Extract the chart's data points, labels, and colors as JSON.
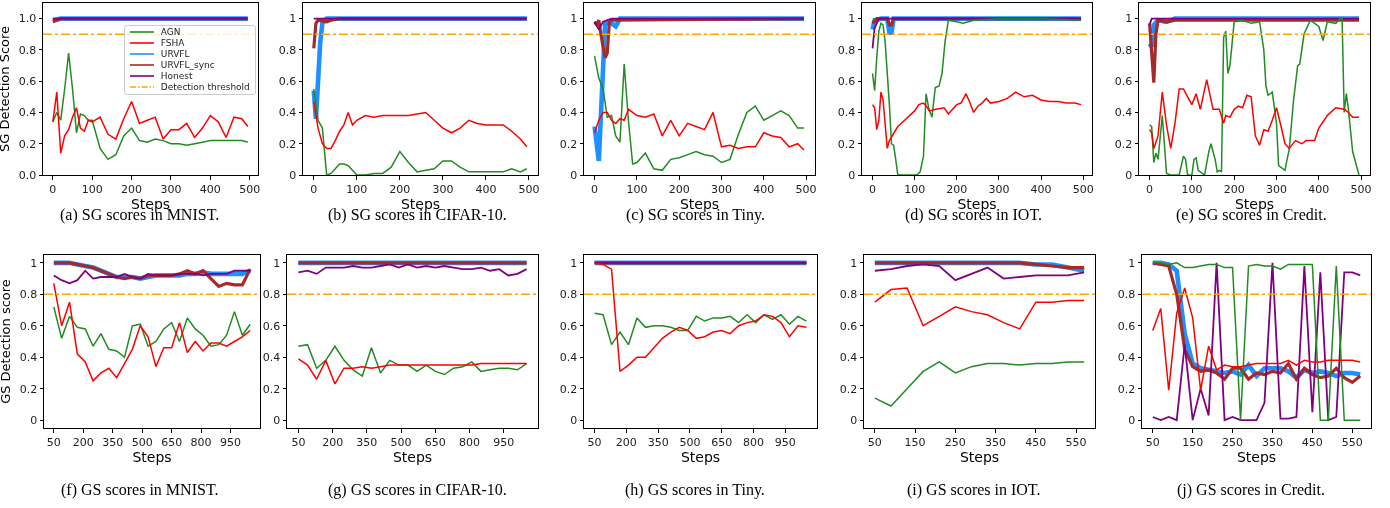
{
  "chart_data": [
    {
      "type": "line",
      "xlabel": "Steps",
      "ylabel": "SG Detection Score",
      "annotations": [
        "(a) SG scores in MNIST."
      ],
      "legend": "top right",
      "x": [
        0,
        10,
        20,
        30,
        40,
        50,
        60,
        70,
        80,
        90,
        100,
        120,
        140,
        160,
        180,
        200,
        220,
        240,
        260,
        280,
        300,
        320,
        340,
        360,
        380,
        400,
        420,
        440,
        460,
        480,
        495
      ],
      "xlim": [
        -25,
        521
      ],
      "xticks": [
        0,
        100,
        200,
        300,
        400,
        500
      ],
      "ylim": [
        0,
        1.1
      ],
      "yticks": [
        {
          "value": 0,
          "label": "0.0"
        },
        0.2,
        0.4,
        0.6,
        0.8,
        {
          "value": 1,
          "label": "1.0"
        }
      ],
      "series": [
        {
          "name": "AGN",
          "color": "#228b22",
          "values": [
            0.34,
            0.4,
            0.35,
            0.55,
            0.78,
            0.55,
            0.27,
            0.39,
            0.38,
            0.35,
            0.35,
            0.17,
            0.1,
            0.13,
            0.25,
            0.3,
            0.22,
            0.21,
            0.23,
            0.22,
            0.2,
            0.2,
            0.19,
            0.2,
            0.21,
            0.22,
            0.22,
            0.22,
            0.22,
            0.22,
            0.21
          ]
        },
        {
          "name": "FSHA",
          "color": "#ff0000",
          "values": [
            0.34,
            0.53,
            0.14,
            0.25,
            0.29,
            0.37,
            0.43,
            0.3,
            0.28,
            0.35,
            0.34,
            0.37,
            0.26,
            0.23,
            0.36,
            0.47,
            0.33,
            0.35,
            0.37,
            0.23,
            0.29,
            0.29,
            0.33,
            0.24,
            0.3,
            0.38,
            0.34,
            0.24,
            0.37,
            0.36,
            0.31
          ]
        },
        {
          "name": "URVFL",
          "color": "#1e90ff",
          "x": [
            0,
            20,
            495
          ],
          "values": [
            0.99,
            1.0,
            1.0
          ]
        },
        {
          "name": "URVFL_sync",
          "color": "#a52a2a",
          "x": [
            0,
            20,
            495
          ],
          "values": [
            0.98,
            1.0,
            1.0
          ]
        },
        {
          "name": "Honest",
          "color": "#800080",
          "x": [
            0,
            495
          ],
          "values": [
            1.0,
            1.0
          ]
        }
      ],
      "ref_lines": [
        {
          "axis": "y",
          "value": 0.9,
          "label": "Detection threshold",
          "color": "#ffa500",
          "line_style": "dashdot"
        }
      ]
    },
    {
      "type": "line",
      "xlabel": "Steps",
      "annotations": [
        "(b) SG scores in CIFAR-10."
      ],
      "x": [
        0,
        10,
        20,
        30,
        40,
        50,
        60,
        70,
        80,
        90,
        100,
        120,
        140,
        160,
        180,
        200,
        220,
        240,
        260,
        280,
        300,
        320,
        340,
        360,
        380,
        400,
        420,
        440,
        460,
        480,
        495
      ],
      "xlim": [
        -25,
        521
      ],
      "xticks": [
        0,
        100,
        200,
        300,
        400,
        500
      ],
      "ylim": [
        0,
        1.1
      ],
      "yticks": [
        0.0,
        0.2,
        0.4,
        0.6,
        0.8,
        1.0
      ],
      "series": [
        {
          "color": "#228b22",
          "values": [
            0.55,
            0.35,
            0.3,
            0.0,
            0.01,
            0.04,
            0.07,
            0.07,
            0.06,
            0.03,
            0.0,
            0.0,
            0.01,
            0.01,
            0.05,
            0.15,
            0.08,
            0.02,
            0.03,
            0.04,
            0.09,
            0.09,
            0.05,
            0.02,
            0.02,
            0.02,
            0.02,
            0.02,
            0.04,
            0.02,
            0.04
          ]
        },
        {
          "color": "#ff0000",
          "values": [
            0.47,
            0.3,
            0.2,
            0.17,
            0.17,
            0.22,
            0.28,
            0.32,
            0.4,
            0.32,
            0.35,
            0.38,
            0.37,
            0.38,
            0.38,
            0.38,
            0.38,
            0.39,
            0.4,
            0.35,
            0.3,
            0.27,
            0.3,
            0.35,
            0.33,
            0.32,
            0.32,
            0.32,
            0.28,
            0.23,
            0.18
          ]
        },
        {
          "color": "#1e90ff",
          "x": [
            0,
            5,
            10,
            15,
            20,
            25,
            30,
            495
          ],
          "values": [
            0.54,
            0.36,
            0.6,
            0.85,
            0.97,
            0.99,
            1.0,
            1.0
          ]
        },
        {
          "color": "#a52a2a",
          "x": [
            0,
            5,
            10,
            30,
            40,
            60,
            495
          ],
          "values": [
            0.81,
            0.97,
            0.99,
            0.98,
            0.99,
            1.0,
            1.0
          ]
        },
        {
          "color": "#800080",
          "x": [
            0,
            495
          ],
          "values": [
            1.0,
            1.0
          ]
        }
      ],
      "ref_lines": [
        {
          "axis": "y",
          "value": 0.9,
          "color": "#ffa500",
          "line_style": "dashdot"
        }
      ]
    },
    {
      "type": "line",
      "xlabel": "Steps",
      "annotations": [
        "(c) SG scores in Tiny."
      ],
      "x": [
        0,
        10,
        20,
        30,
        40,
        50,
        60,
        70,
        80,
        90,
        100,
        120,
        140,
        160,
        180,
        200,
        220,
        240,
        260,
        280,
        300,
        320,
        340,
        360,
        380,
        400,
        420,
        440,
        460,
        480,
        495
      ],
      "xlim": [
        -25,
        521
      ],
      "xticks": [
        0,
        100,
        200,
        300,
        400,
        500
      ],
      "ylim": [
        0,
        1.1
      ],
      "yticks": [
        0.0,
        0.2,
        0.4,
        0.6,
        0.8,
        1.0
      ],
      "series": [
        {
          "color": "#228b22",
          "values": [
            0.76,
            0.62,
            0.55,
            0.37,
            0.38,
            0.25,
            0.21,
            0.71,
            0.35,
            0.07,
            0.08,
            0.14,
            0.04,
            0.03,
            0.1,
            0.11,
            0.13,
            0.15,
            0.13,
            0.12,
            0.08,
            0.1,
            0.26,
            0.4,
            0.44,
            0.35,
            0.38,
            0.41,
            0.38,
            0.3,
            0.3
          ]
        },
        {
          "color": "#ff0000",
          "values": [
            0.27,
            0.35,
            0.4,
            0.4,
            0.35,
            0.33,
            0.36,
            0.35,
            0.42,
            0.4,
            0.38,
            0.37,
            0.39,
            0.25,
            0.35,
            0.25,
            0.33,
            0.31,
            0.29,
            0.4,
            0.18,
            0.19,
            0.17,
            0.18,
            0.18,
            0.27,
            0.25,
            0.24,
            0.18,
            0.2,
            0.16
          ]
        },
        {
          "color": "#1e90ff",
          "x": [
            0,
            10,
            25,
            40,
            50,
            60,
            495
          ],
          "values": [
            0.31,
            0.09,
            0.97,
            0.97,
            0.95,
            1.0,
            1.0
          ]
        },
        {
          "color": "#a52a2a",
          "x": [
            0,
            5,
            10,
            15,
            20,
            25,
            30,
            35,
            40,
            495
          ],
          "values": [
            0.98,
            0.96,
            0.99,
            0.9,
            0.82,
            0.75,
            0.78,
            0.98,
            0.99,
            1.0
          ]
        },
        {
          "color": "#800080",
          "x": [
            0,
            10,
            20,
            40,
            495
          ],
          "values": [
            0.98,
            0.93,
            0.98,
            1.0,
            1.0
          ]
        }
      ],
      "ref_lines": [
        {
          "axis": "y",
          "value": 0.9,
          "color": "#ffa500",
          "line_style": "dashdot"
        }
      ]
    },
    {
      "type": "line",
      "xlabel": "Steps",
      "annotations": [
        "(d) SG scores in IOT."
      ],
      "xlim": [
        -25,
        521
      ],
      "xticks": [
        0,
        100,
        200,
        300,
        400,
        500
      ],
      "ylim": [
        0,
        1.1
      ],
      "yticks": [
        0.0,
        0.2,
        0.4,
        0.6,
        0.8,
        1.0
      ],
      "series": [
        {
          "color": "#228b22",
          "x": [
            0,
            5,
            10,
            15,
            20,
            25,
            30,
            40,
            45,
            50,
            55,
            60,
            105,
            113,
            121,
            127,
            134,
            141,
            149,
            158,
            165,
            172,
            180,
            200,
            215,
            240,
            300,
            400,
            495
          ],
          "values": [
            0.65,
            0.54,
            0.75,
            0.92,
            0.97,
            0.96,
            0.85,
            0.45,
            0.2,
            0.19,
            0.1,
            0.0,
            0.0,
            0.02,
            0.12,
            0.52,
            0.42,
            0.37,
            0.56,
            0.57,
            0.65,
            0.85,
            0.99,
            0.98,
            0.97,
            0.99,
            1.0,
            1.0,
            0.99
          ]
        },
        {
          "color": "#ff0000",
          "x": [
            0,
            5,
            10,
            15,
            20,
            25,
            35,
            40,
            60,
            80,
            100,
            110,
            120,
            125,
            135,
            150,
            170,
            180,
            190,
            200,
            210,
            222,
            230,
            240,
            250,
            260,
            270,
            280,
            300,
            320,
            340,
            360,
            380,
            400,
            420,
            440,
            460,
            480,
            495
          ],
          "values": [
            0.45,
            0.43,
            0.29,
            0.35,
            0.53,
            0.48,
            0.17,
            0.22,
            0.31,
            0.36,
            0.41,
            0.45,
            0.46,
            0.45,
            0.41,
            0.42,
            0.43,
            0.39,
            0.42,
            0.45,
            0.46,
            0.52,
            0.47,
            0.4,
            0.44,
            0.46,
            0.49,
            0.46,
            0.47,
            0.49,
            0.53,
            0.5,
            0.51,
            0.48,
            0.47,
            0.47,
            0.46,
            0.46,
            0.45
          ]
        },
        {
          "color": "#1e90ff",
          "x": [
            0,
            5,
            10,
            20,
            35,
            40,
            45,
            50,
            495
          ],
          "values": [
            0.93,
            0.99,
            0.99,
            1.0,
            1.0,
            0.91,
            0.91,
            1.0,
            1.0
          ]
        },
        {
          "color": "#a52a2a",
          "x": [
            0,
            10,
            20,
            35,
            40,
            45,
            50,
            495
          ],
          "values": [
            0.97,
            1.0,
            1.0,
            1.0,
            0.96,
            0.96,
            1.0,
            1.0
          ]
        },
        {
          "color": "#800080",
          "x": [
            0,
            5,
            10,
            15,
            495
          ],
          "values": [
            0.81,
            0.94,
            0.97,
            1.0,
            1.0
          ]
        }
      ],
      "ref_lines": [
        {
          "axis": "y",
          "value": 0.9,
          "color": "#ffa500",
          "line_style": "dashdot"
        }
      ]
    },
    {
      "type": "line",
      "xlabel": "Steps",
      "annotations": [
        "(e) SG scores in Credit."
      ],
      "xlim": [
        -25,
        521
      ],
      "xticks": [
        0,
        100,
        200,
        300,
        400,
        500
      ],
      "ylim": [
        0,
        1.1
      ],
      "yticks": [
        0.0,
        0.2,
        0.4,
        0.6,
        0.8,
        1.0
      ],
      "series": [
        {
          "color": "#228b22",
          "x": [
            0,
            5,
            10,
            15,
            20,
            30,
            35,
            40,
            50,
            70,
            80,
            85,
            90,
            100,
            105,
            110,
            115,
            130,
            140,
            145,
            155,
            160,
            165,
            170,
            175,
            180,
            185,
            190,
            200,
            220,
            240,
            260,
            270,
            275,
            280,
            290,
            300,
            305,
            320,
            325,
            330,
            340,
            350,
            355,
            365,
            380,
            400,
            410,
            420,
            440,
            450,
            455,
            460,
            465,
            470,
            480,
            495
          ],
          "values": [
            0.32,
            0.31,
            0.08,
            0.14,
            0.1,
            0.38,
            0.2,
            0.01,
            0.0,
            0.0,
            0.12,
            0.1,
            0.0,
            0.0,
            0.1,
            0.11,
            0.03,
            0.0,
            0.15,
            0.2,
            0.1,
            0.02,
            0.03,
            0.02,
            0.88,
            0.92,
            0.65,
            0.7,
            0.98,
            0.99,
            0.97,
            0.98,
            0.8,
            0.57,
            0.51,
            0.53,
            0.33,
            0.06,
            0.03,
            0.1,
            0.16,
            0.47,
            0.7,
            0.71,
            0.9,
            0.99,
            0.95,
            0.86,
            0.98,
            0.97,
            1.0,
            1.0,
            0.4,
            0.52,
            0.42,
            0.15,
            0.0
          ]
        },
        {
          "color": "#ff0000",
          "x": [
            0,
            5,
            10,
            20,
            30,
            40,
            50,
            60,
            70,
            80,
            90,
            100,
            110,
            120,
            135,
            150,
            165,
            175,
            180,
            190,
            200,
            210,
            220,
            230,
            240,
            250,
            260,
            270,
            280,
            290,
            300,
            310,
            320,
            330,
            345,
            360,
            370,
            390,
            400,
            420,
            440,
            460,
            470,
            480,
            495
          ],
          "values": [
            0.29,
            0.27,
            0.17,
            0.25,
            0.53,
            0.32,
            0.17,
            0.33,
            0.55,
            0.55,
            0.5,
            0.45,
            0.52,
            0.42,
            0.61,
            0.42,
            0.42,
            0.33,
            0.38,
            0.37,
            0.42,
            0.44,
            0.43,
            0.51,
            0.5,
            0.25,
            0.19,
            0.29,
            0.28,
            0.35,
            0.43,
            0.32,
            0.2,
            0.17,
            0.22,
            0.2,
            0.22,
            0.22,
            0.3,
            0.38,
            0.43,
            0.42,
            0.4,
            0.37,
            0.37
          ]
        },
        {
          "color": "#1e90ff",
          "x": [
            0,
            5,
            10,
            20,
            40,
            60,
            495
          ],
          "values": [
            0.84,
            0.82,
            0.96,
            0.99,
            0.98,
            1.0,
            1.0
          ]
        },
        {
          "color": "#a52a2a",
          "x": [
            0,
            5,
            10,
            15,
            20,
            40,
            60,
            495
          ],
          "values": [
            0.97,
            0.78,
            0.59,
            0.9,
            0.99,
            0.98,
            0.99,
            0.99
          ]
        },
        {
          "color": "#800080",
          "x": [
            0,
            5,
            495
          ],
          "values": [
            0.96,
            1.0,
            1.0
          ]
        }
      ],
      "ref_lines": [
        {
          "axis": "y",
          "value": 0.9,
          "color": "#ffa500",
          "line_style": "dashdot"
        }
      ]
    },
    {
      "type": "line",
      "xlabel": "Steps",
      "ylabel": "GS Detection score",
      "annotations": [
        "(f) GS scores in MNIST."
      ],
      "x": [
        50,
        90,
        130,
        170,
        210,
        250,
        290,
        330,
        370,
        410,
        450,
        490,
        530,
        570,
        610,
        650,
        690,
        730,
        770,
        810,
        850,
        890,
        930,
        970,
        1010,
        1050
      ],
      "xlim": [
        0,
        1100
      ],
      "xticks": [
        50,
        200,
        350,
        500,
        650,
        800,
        950
      ],
      "ylim": [
        -0.05,
        1.05
      ],
      "yticks": [
        0.0,
        0.2,
        0.4,
        0.6,
        0.8,
        1.0
      ],
      "series": [
        {
          "color": "#228b22",
          "values": [
            0.72,
            0.52,
            0.66,
            0.59,
            0.58,
            0.47,
            0.55,
            0.45,
            0.44,
            0.4,
            0.6,
            0.61,
            0.47,
            0.5,
            0.58,
            0.62,
            0.5,
            0.65,
            0.58,
            0.54,
            0.47,
            0.48,
            0.54,
            0.69,
            0.54,
            0.61
          ]
        },
        {
          "color": "#ff0000",
          "values": [
            0.87,
            0.6,
            0.75,
            0.42,
            0.37,
            0.25,
            0.3,
            0.33,
            0.27,
            0.36,
            0.45,
            0.6,
            0.53,
            0.34,
            0.46,
            0.46,
            0.62,
            0.43,
            0.5,
            0.44,
            0.49,
            0.49,
            0.47,
            0.5,
            0.53,
            0.57
          ]
        },
        {
          "color": "#1e90ff",
          "values": [
            1.0,
            1.0,
            1.0,
            0.99,
            0.98,
            0.97,
            0.95,
            0.93,
            0.91,
            0.91,
            0.91,
            0.9,
            0.91,
            0.92,
            0.92,
            0.92,
            0.92,
            0.93,
            0.93,
            0.94,
            0.93,
            0.93,
            0.93,
            0.93,
            0.93,
            0.95
          ]
        },
        {
          "color": "#a52a2a",
          "values": [
            1.0,
            1.0,
            1.0,
            0.99,
            0.98,
            0.97,
            0.95,
            0.93,
            0.91,
            0.9,
            0.91,
            0.9,
            0.92,
            0.92,
            0.92,
            0.92,
            0.93,
            0.95,
            0.93,
            0.95,
            0.9,
            0.85,
            0.87,
            0.86,
            0.86,
            0.96
          ]
        },
        {
          "color": "#800080",
          "values": [
            0.92,
            0.89,
            0.87,
            0.89,
            0.95,
            0.9,
            0.91,
            0.91,
            0.91,
            0.93,
            0.91,
            0.9,
            0.93,
            0.92,
            0.92,
            0.92,
            0.93,
            0.93,
            0.93,
            0.92,
            0.93,
            0.93,
            0.93,
            0.95,
            0.95,
            0.95
          ]
        }
      ],
      "ref_lines": [
        {
          "axis": "y",
          "value": 0.8,
          "color": "#ffa500",
          "line_style": "dashdot"
        }
      ]
    },
    {
      "type": "line",
      "xlabel": "Steps",
      "annotations": [
        "(g) GS scores in CIFAR-10."
      ],
      "x": [
        50,
        90,
        130,
        170,
        210,
        250,
        290,
        330,
        370,
        410,
        450,
        490,
        530,
        570,
        610,
        650,
        690,
        730,
        770,
        810,
        850,
        890,
        930,
        970,
        1010,
        1050
      ],
      "xlim": [
        0,
        1100
      ],
      "xticks": [
        50,
        200,
        350,
        500,
        650,
        800,
        950
      ],
      "ylim": [
        -0.05,
        1.05
      ],
      "yticks": [
        0.0,
        0.2,
        0.4,
        0.6,
        0.8,
        1.0
      ],
      "series": [
        {
          "color": "#228b22",
          "values": [
            0.47,
            0.48,
            0.33,
            0.38,
            0.47,
            0.38,
            0.32,
            0.28,
            0.46,
            0.3,
            0.38,
            0.35,
            0.35,
            0.31,
            0.35,
            0.31,
            0.29,
            0.33,
            0.34,
            0.37,
            0.31,
            0.32,
            0.33,
            0.33,
            0.32,
            0.36
          ]
        },
        {
          "color": "#ff0000",
          "values": [
            0.39,
            0.35,
            0.26,
            0.38,
            0.23,
            0.33,
            0.33,
            0.34,
            0.33,
            0.34,
            0.35,
            0.35,
            0.35,
            0.35,
            0.35,
            0.35,
            0.35,
            0.35,
            0.35,
            0.35,
            0.36,
            0.36,
            0.36,
            0.36,
            0.36,
            0.36
          ]
        },
        {
          "color": "#1e90ff",
          "x": [
            50,
            1050
          ],
          "values": [
            1.0,
            1.0
          ]
        },
        {
          "color": "#a52a2a",
          "x": [
            50,
            1050
          ],
          "values": [
            1.0,
            1.0
          ]
        },
        {
          "color": "#800080",
          "values": [
            0.94,
            0.95,
            0.93,
            0.97,
            0.97,
            0.97,
            0.98,
            0.97,
            0.97,
            0.98,
            0.99,
            0.97,
            0.99,
            0.97,
            0.98,
            0.97,
            0.98,
            0.97,
            0.96,
            0.96,
            0.97,
            0.95,
            0.96,
            0.92,
            0.93,
            0.96
          ]
        }
      ],
      "ref_lines": [
        {
          "axis": "y",
          "value": 0.8,
          "color": "#ffa500",
          "line_style": "dashdot"
        }
      ]
    },
    {
      "type": "line",
      "xlabel": "Steps",
      "annotations": [
        "(h) GS scores in Tiny."
      ],
      "x": [
        50,
        90,
        130,
        170,
        210,
        250,
        290,
        330,
        370,
        410,
        450,
        490,
        530,
        570,
        610,
        650,
        690,
        730,
        770,
        810,
        850,
        890,
        930,
        970,
        1010,
        1050
      ],
      "xlim": [
        0,
        1100
      ],
      "xticks": [
        50,
        200,
        350,
        500,
        650,
        800,
        950
      ],
      "ylim": [
        -0.05,
        1.05
      ],
      "yticks": [
        0.0,
        0.2,
        0.4,
        0.6,
        0.8,
        1.0
      ],
      "series": [
        {
          "color": "#228b22",
          "values": [
            0.68,
            0.67,
            0.48,
            0.56,
            0.48,
            0.65,
            0.59,
            0.6,
            0.6,
            0.59,
            0.57,
            0.57,
            0.66,
            0.63,
            0.65,
            0.65,
            0.66,
            0.62,
            0.67,
            0.62,
            0.67,
            0.64,
            0.67,
            0.61,
            0.66,
            0.63
          ]
        },
        {
          "color": "#ff0000",
          "values": [
            1.0,
            0.99,
            0.96,
            0.31,
            0.35,
            0.4,
            0.4,
            0.46,
            0.52,
            0.56,
            0.59,
            0.57,
            0.52,
            0.53,
            0.56,
            0.57,
            0.55,
            0.6,
            0.62,
            0.63,
            0.67,
            0.66,
            0.62,
            0.53,
            0.6,
            0.59
          ]
        },
        {
          "color": "#1e90ff",
          "x": [
            50,
            1050
          ],
          "values": [
            1.0,
            1.0
          ]
        },
        {
          "color": "#a52a2a",
          "x": [
            50,
            1050
          ],
          "values": [
            1.0,
            1.0
          ]
        },
        {
          "color": "#800080",
          "x": [
            50,
            1050
          ],
          "values": [
            1.0,
            1.0
          ]
        }
      ],
      "ref_lines": [
        {
          "axis": "y",
          "value": 0.8,
          "color": "#ffa500",
          "line_style": "dashdot"
        }
      ]
    },
    {
      "type": "line",
      "xlabel": "Steps",
      "annotations": [
        "(i) GS scores in IOT."
      ],
      "x": [
        50,
        90,
        130,
        170,
        210,
        250,
        290,
        330,
        370,
        410,
        450,
        490,
        530,
        570
      ],
      "xlim": [
        23,
        597
      ],
      "xticks": [
        50,
        150,
        250,
        350,
        450,
        550
      ],
      "ylim": [
        -0.05,
        1.05
      ],
      "yticks": [
        0.0,
        0.2,
        0.4,
        0.6,
        0.8,
        1.0
      ],
      "series": [
        {
          "color": "#228b22",
          "values": [
            0.14,
            0.09,
            0.2,
            0.31,
            0.37,
            0.3,
            0.34,
            0.36,
            0.36,
            0.35,
            0.36,
            0.36,
            0.37,
            0.37
          ]
        },
        {
          "color": "#ff0000",
          "values": [
            0.75,
            0.83,
            0.84,
            0.6,
            0.66,
            0.72,
            0.69,
            0.67,
            0.62,
            0.58,
            0.75,
            0.75,
            0.76,
            0.76
          ]
        },
        {
          "color": "#1e90ff",
          "values": [
            1.0,
            1.0,
            1.0,
            1.0,
            1.0,
            1.0,
            1.0,
            1.0,
            1.0,
            1.0,
            0.99,
            0.99,
            0.97,
            0.95
          ]
        },
        {
          "color": "#a52a2a",
          "values": [
            1.0,
            1.0,
            1.0,
            1.0,
            1.0,
            1.0,
            1.0,
            1.0,
            1.0,
            1.0,
            0.99,
            0.98,
            0.97,
            0.97
          ]
        },
        {
          "color": "#800080",
          "values": [
            0.95,
            0.96,
            0.98,
            0.99,
            0.98,
            0.89,
            0.93,
            0.97,
            0.9,
            0.91,
            0.92,
            0.92,
            0.92,
            0.94
          ]
        }
      ],
      "ref_lines": [
        {
          "axis": "y",
          "value": 0.8,
          "color": "#ffa500",
          "line_style": "dashdot"
        }
      ]
    },
    {
      "type": "line",
      "xlabel": "Steps",
      "annotations": [
        "(j) GS scores in Credit."
      ],
      "x": [
        50,
        70,
        90,
        110,
        130,
        150,
        170,
        190,
        210,
        230,
        250,
        270,
        290,
        310,
        330,
        350,
        370,
        390,
        410,
        430,
        450,
        470,
        490,
        510,
        530,
        550,
        570
      ],
      "xlim": [
        23,
        597
      ],
      "xticks": [
        50,
        150,
        250,
        350,
        450,
        550
      ],
      "ylim": [
        -0.05,
        1.05
      ],
      "yticks": [
        0.0,
        0.2,
        0.4,
        0.6,
        0.8,
        1.0
      ],
      "series": [
        {
          "color": "#228b22",
          "values": [
            1.0,
            1.0,
            0.99,
            1.0,
            0.97,
            0.97,
            0.98,
            0.99,
            0.99,
            0.97,
            0.97,
            0.0,
            0.98,
            0.99,
            0.98,
            0.98,
            0.96,
            0.99,
            0.99,
            0.99,
            0.99,
            0.0,
            0.0,
            0.98,
            0.0,
            0.0,
            0.0
          ]
        },
        {
          "color": "#ff0000",
          "values": [
            0.57,
            0.71,
            0.19,
            0.68,
            0.84,
            0.65,
            0.19,
            0.47,
            0.32,
            0.35,
            0.34,
            0.34,
            0.35,
            0.36,
            0.36,
            0.36,
            0.36,
            0.38,
            0.35,
            0.38,
            0.37,
            0.37,
            0.38,
            0.38,
            0.38,
            0.38,
            0.37
          ]
        },
        {
          "color": "#1e90ff",
          "values": [
            1.0,
            1.0,
            0.99,
            0.95,
            0.55,
            0.36,
            0.33,
            0.32,
            0.31,
            0.3,
            0.31,
            0.29,
            0.35,
            0.28,
            0.33,
            0.33,
            0.33,
            0.31,
            0.27,
            0.32,
            0.3,
            0.31,
            0.3,
            0.28,
            0.3,
            0.3,
            0.29
          ]
        },
        {
          "color": "#a52a2a",
          "values": [
            1.0,
            0.99,
            0.98,
            0.8,
            0.45,
            0.34,
            0.31,
            0.32,
            0.3,
            0.26,
            0.33,
            0.33,
            0.26,
            0.3,
            0.29,
            0.31,
            0.3,
            0.36,
            0.26,
            0.33,
            0.29,
            0.27,
            0.28,
            0.33,
            0.27,
            0.24,
            0.28
          ]
        },
        {
          "color": "#800080",
          "values": [
            0.02,
            0.0,
            0.02,
            0.0,
            0.48,
            0.0,
            0.2,
            0.03,
            1.0,
            0.0,
            0.02,
            0.0,
            0.0,
            0.0,
            0.11,
            1.0,
            0.01,
            0.01,
            0.02,
            0.98,
            0.05,
            0.94,
            0.0,
            0.02,
            0.94,
            0.94,
            0.92
          ]
        }
      ],
      "ref_lines": [
        {
          "axis": "y",
          "value": 0.8,
          "color": "#ffa500",
          "line_style": "dashdot"
        }
      ]
    }
  ]
}
